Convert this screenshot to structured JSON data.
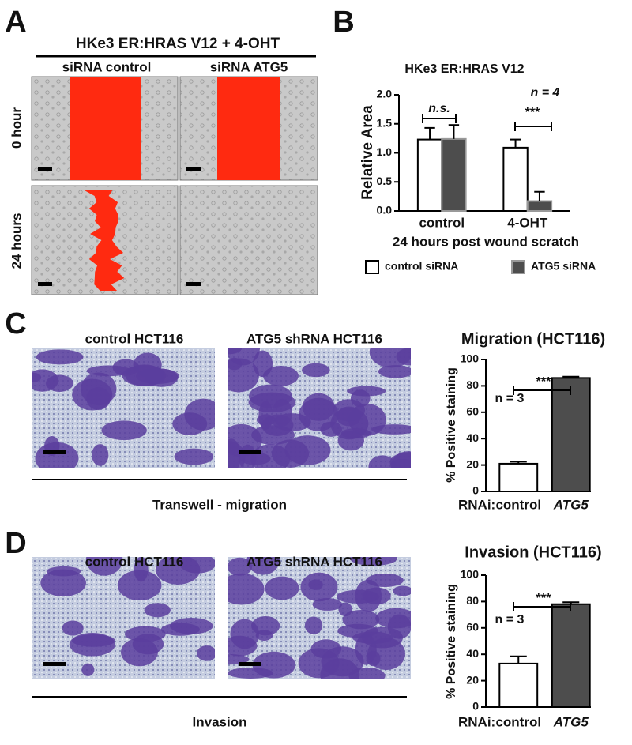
{
  "panels": [
    {
      "letter": "A",
      "title": "HKe3 ER:HRAS V12 + 4-OHT",
      "columns": [
        "siRNA control",
        "siRNA ATG5"
      ],
      "rows": [
        "0 hour",
        "24 hours"
      ]
    },
    {
      "letter": "B"
    },
    {
      "letter": "C",
      "columns": [
        "control HCT116",
        "ATG5 shRNA HCT116"
      ],
      "caption": "Transwell - migration"
    },
    {
      "letter": "D",
      "columns": [
        "control HCT116",
        "ATG5 shRNA HCT116"
      ],
      "caption": "Invasion"
    }
  ],
  "chart_data": [
    {
      "type": "bar",
      "title": "HKe3 ER:HRAS V12",
      "ylabel": "Relative Area",
      "xlabel": "24 hours post wound scratch",
      "categories": [
        "control",
        "4-OHT"
      ],
      "series": [
        {
          "name": "control siRNA",
          "color": "#ffffff",
          "values": [
            1.23,
            1.09
          ],
          "errors": [
            0.2,
            0.14
          ]
        },
        {
          "name": "ATG5 siRNA",
          "color": "#4d4d4d",
          "values": [
            1.24,
            0.17
          ],
          "errors": [
            0.24,
            0.16
          ]
        }
      ],
      "ylim": [
        0,
        2.0
      ],
      "yticks": [
        {
          "value": 0,
          "label": "0.0"
        },
        {
          "value": 0.5,
          "label": "0.5"
        },
        {
          "value": 1.0,
          "label": "1.0"
        },
        {
          "value": 1.5,
          "label": "1.5"
        },
        {
          "value": 2.0,
          "label": "2.0"
        }
      ],
      "annotations": [
        "n.s.",
        "***",
        "n = 4"
      ]
    },
    {
      "type": "bar",
      "title": "Migration (HCT116)",
      "ylabel": "% Positive staining",
      "xlabel": "RNAi:",
      "categories": [
        "control",
        "ATG5"
      ],
      "values": [
        21,
        86
      ],
      "errors": [
        1.5,
        1
      ],
      "colors": [
        "#ffffff",
        "#4d4d4d"
      ],
      "ylim": [
        0,
        100
      ],
      "yticks": [
        0,
        20,
        40,
        60,
        80,
        100
      ],
      "annotations": [
        "***",
        "n = 3"
      ]
    },
    {
      "type": "bar",
      "title": "Invasion (HCT116)",
      "ylabel": "% Positive staining",
      "xlabel": "RNAi:",
      "categories": [
        "control",
        "ATG5"
      ],
      "values": [
        33,
        78
      ],
      "errors": [
        5.5,
        1.5
      ],
      "colors": [
        "#ffffff",
        "#4d4d4d"
      ],
      "ylim": [
        0,
        100
      ],
      "yticks": [
        0,
        20,
        40,
        60,
        80,
        100
      ],
      "annotations": [
        "***",
        "n = 3"
      ]
    }
  ]
}
